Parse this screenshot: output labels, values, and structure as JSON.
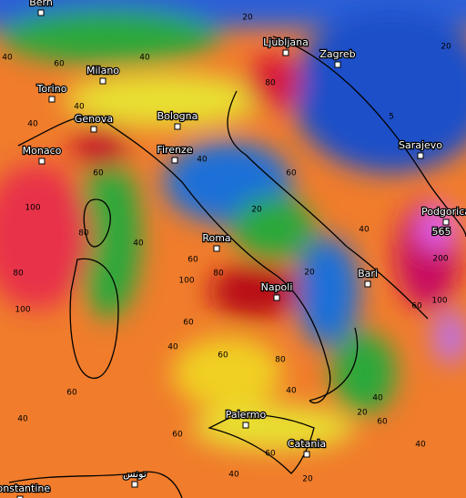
{
  "cities": [
    {
      "name": "Bern"
    },
    {
      "name": "Ljubljana"
    },
    {
      "name": "Zagreb"
    },
    {
      "name": "Milano"
    },
    {
      "name": "Torino"
    },
    {
      "name": "Genova"
    },
    {
      "name": "Bologna"
    },
    {
      "name": "Monaco"
    },
    {
      "name": "Firenze"
    },
    {
      "name": "Sarajevo"
    },
    {
      "name": "Podgorica"
    },
    {
      "name": "Roma"
    },
    {
      "name": "Bari"
    },
    {
      "name": "Napoli"
    },
    {
      "name": "Palermo"
    },
    {
      "name": "Catania"
    },
    {
      "name": "Constantine"
    },
    {
      "name": "تونس"
    }
  ],
  "peak_label": "565",
  "contour_labels": [
    20,
    20,
    5,
    40,
    40,
    60,
    80,
    40,
    40,
    60,
    100,
    80,
    100,
    80,
    40,
    60,
    100,
    80,
    60,
    40,
    60,
    80,
    20,
    40,
    60,
    20,
    40,
    20,
    40,
    60,
    100,
    200,
    60,
    40,
    60,
    40,
    20,
    60,
    40,
    60,
    40
  ]
}
